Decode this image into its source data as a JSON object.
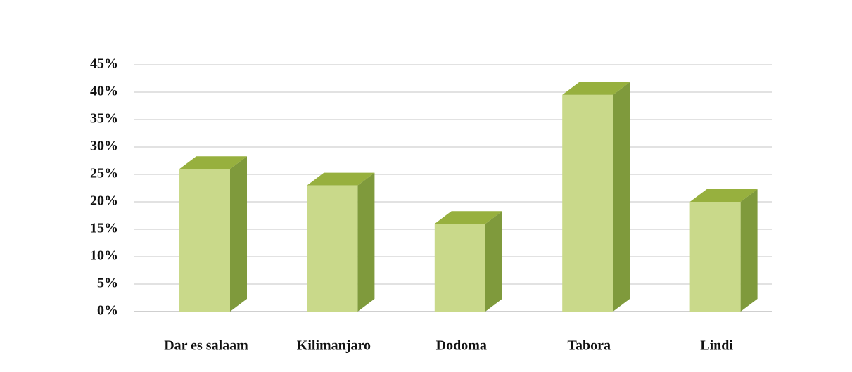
{
  "chart_data": {
    "type": "bar3d",
    "categories": [
      "Dar es salaam",
      "Kilimanjaro",
      "Dodoma",
      "Tabora",
      "Lindi"
    ],
    "values": [
      26,
      23,
      16,
      39.5,
      20
    ],
    "color": "#c9d98a",
    "ylim": [
      0,
      45
    ],
    "yticks": [
      {
        "value": 0,
        "label": "0%"
      },
      {
        "value": 5,
        "label": "5%"
      },
      {
        "value": 10,
        "label": "10%"
      },
      {
        "value": 15,
        "label": "15%"
      },
      {
        "value": 20,
        "label": "20%"
      },
      {
        "value": 25,
        "label": "25%"
      },
      {
        "value": 30,
        "label": "30%"
      },
      {
        "value": 35,
        "label": "35%"
      },
      {
        "value": 40,
        "label": "40%"
      },
      {
        "value": 45,
        "label": "45%"
      }
    ],
    "grid": true
  }
}
